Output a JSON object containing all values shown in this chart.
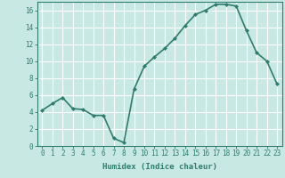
{
  "x": [
    0,
    1,
    2,
    3,
    4,
    5,
    6,
    7,
    8,
    9,
    10,
    11,
    12,
    13,
    14,
    15,
    16,
    17,
    18,
    19,
    20,
    21,
    22,
    23
  ],
  "y": [
    4.2,
    5.0,
    5.7,
    4.4,
    4.3,
    3.6,
    3.6,
    0.9,
    0.4,
    6.7,
    9.4,
    10.5,
    11.5,
    12.7,
    14.2,
    15.5,
    16.0,
    16.7,
    16.7,
    16.5,
    13.6,
    11.0,
    10.0,
    7.3
  ],
  "line_color": "#2e7d6e",
  "marker": "D",
  "marker_size": 2.0,
  "line_width": 1.2,
  "bg_color": "#c8e8e4",
  "grid_color": "#ffffff",
  "xlabel": "Humidex (Indice chaleur)",
  "xlim": [
    -0.5,
    23.5
  ],
  "ylim": [
    0,
    17
  ],
  "yticks": [
    0,
    2,
    4,
    6,
    8,
    10,
    12,
    14,
    16
  ],
  "xticks": [
    0,
    1,
    2,
    3,
    4,
    5,
    6,
    7,
    8,
    9,
    10,
    11,
    12,
    13,
    14,
    15,
    16,
    17,
    18,
    19,
    20,
    21,
    22,
    23
  ],
  "tick_color": "#2e7d6e",
  "label_fontsize": 6.5,
  "tick_fontsize": 5.5,
  "spine_color": "#2e7d6e"
}
